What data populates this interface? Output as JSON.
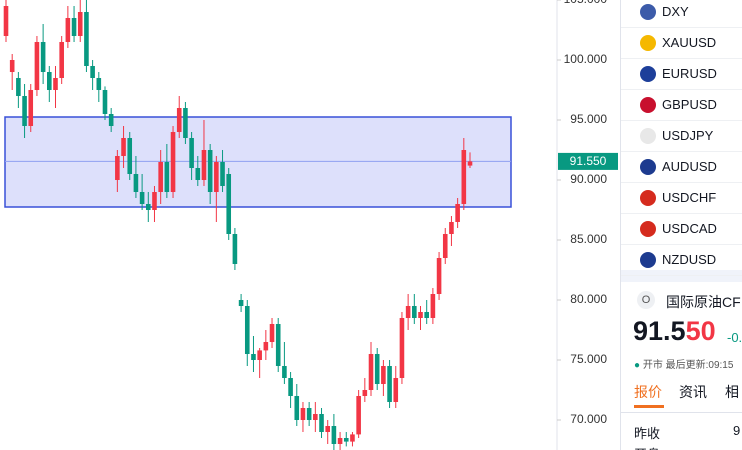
{
  "chart_data": {
    "type": "candlestick",
    "up_color": "#f23645",
    "down_color": "#089981",
    "ylim": [
      67.5,
      105
    ],
    "yticks": [
      {
        "value": 105,
        "label": "105.000"
      },
      {
        "value": 100,
        "label": "100.000"
      },
      {
        "value": 95,
        "label": "95.000"
      },
      {
        "value": 90,
        "label": "90.000"
      },
      {
        "value": 85,
        "label": "85.000"
      },
      {
        "value": 80,
        "label": "80.000"
      },
      {
        "value": 75,
        "label": "75.000"
      },
      {
        "value": 70,
        "label": "70.000"
      }
    ],
    "last_price": {
      "value": 91.55,
      "label": "91.550"
    },
    "zone": [
      87.75,
      95.25
    ],
    "open": [
      102.0,
      99.0,
      98.5,
      97.0,
      94.5,
      97.5,
      101.5,
      99.0,
      97.5,
      98.5,
      101.5,
      103.5,
      102.0,
      104.0,
      99.5,
      98.5,
      97.5,
      95.5,
      90.0,
      92.0,
      93.5,
      90.5,
      89.0,
      88.0,
      87.5,
      89.0,
      91.5,
      89.0,
      94.0,
      96.0,
      93.5,
      91.0,
      90.0,
      92.5,
      89.0,
      91.5,
      90.5,
      85.5,
      80.0,
      79.5,
      75.5,
      75.0,
      75.8,
      76.5,
      78.0,
      74.5,
      73.5,
      72.0,
      70.0,
      71.0,
      70.0,
      70.5,
      69.0,
      69.5,
      68.0,
      68.5,
      68.2,
      68.8,
      72.0,
      72.5,
      75.5,
      73.0,
      74.5,
      71.5,
      73.5,
      78.5,
      79.5,
      78.5,
      79.0,
      78.5,
      80.5,
      83.5,
      85.5,
      86.5,
      88.0,
      91.2
    ],
    "high": [
      105.5,
      100.5,
      99.0,
      98.0,
      98.0,
      102.0,
      103.0,
      99.5,
      99.5,
      102.0,
      104.5,
      104.5,
      105.5,
      105.0,
      100.0,
      99.0,
      97.8,
      96.0,
      92.5,
      94.5,
      94.0,
      92.0,
      90.5,
      89.0,
      89.5,
      92.5,
      93.0,
      94.5,
      97.0,
      96.5,
      94.0,
      92.0,
      95.0,
      93.0,
      92.0,
      92.5,
      91.0,
      86.0,
      80.5,
      80.0,
      77.0,
      76.0,
      77.5,
      78.5,
      78.5,
      76.5,
      74.0,
      73.0,
      71.5,
      71.5,
      71.5,
      71.0,
      70.0,
      70.5,
      69.0,
      69.0,
      69.0,
      72.5,
      73.5,
      76.5,
      76.0,
      75.0,
      75.0,
      74.5,
      79.0,
      80.5,
      80.5,
      79.5,
      80.0,
      81.0,
      84.0,
      86.0,
      87.0,
      88.5,
      93.5,
      92.3
    ],
    "low": [
      101.5,
      97.5,
      96.0,
      93.5,
      94.0,
      97.0,
      98.0,
      96.5,
      96.0,
      98.0,
      101.0,
      101.5,
      101.5,
      99.0,
      97.5,
      96.5,
      95.0,
      94.0,
      89.0,
      91.0,
      90.0,
      88.5,
      87.5,
      86.5,
      86.5,
      88.0,
      88.5,
      88.5,
      93.5,
      93.0,
      90.0,
      89.5,
      89.5,
      88.0,
      86.5,
      89.0,
      85.0,
      82.5,
      79.0,
      74.5,
      74.0,
      73.5,
      75.0,
      76.0,
      74.0,
      73.0,
      71.0,
      69.5,
      69.0,
      69.5,
      69.0,
      68.5,
      68.0,
      67.5,
      67.5,
      67.8,
      67.8,
      68.5,
      71.5,
      72.0,
      72.5,
      72.0,
      71.0,
      71.0,
      73.0,
      77.5,
      78.0,
      77.5,
      78.0,
      78.0,
      80.0,
      83.0,
      84.5,
      86.0,
      87.5,
      91.0
    ],
    "close": [
      104.5,
      100.0,
      97.0,
      94.5,
      97.5,
      101.5,
      99.0,
      97.5,
      98.5,
      101.5,
      103.5,
      102.0,
      104.0,
      99.5,
      98.5,
      97.5,
      95.5,
      94.5,
      92.0,
      93.5,
      90.5,
      89.0,
      88.0,
      87.5,
      89.0,
      91.5,
      89.0,
      94.0,
      96.0,
      93.5,
      91.0,
      90.0,
      92.5,
      89.0,
      91.5,
      89.5,
      85.5,
      83.0,
      79.5,
      75.5,
      75.0,
      75.8,
      76.5,
      78.0,
      74.5,
      73.5,
      72.0,
      70.0,
      71.0,
      70.0,
      70.5,
      69.0,
      69.5,
      68.0,
      68.5,
      68.2,
      68.8,
      72.0,
      72.5,
      75.5,
      73.0,
      74.5,
      71.5,
      73.5,
      78.5,
      79.5,
      78.5,
      79.0,
      78.5,
      80.5,
      83.5,
      85.5,
      86.5,
      88.0,
      92.5,
      91.55
    ]
  },
  "watchlist": [
    "DXY",
    "XAUUSD",
    "EURUSD",
    "GBPUSD",
    "USDJPY",
    "AUDUSD",
    "USDCHF",
    "USDCAD",
    "NZDUSD"
  ],
  "quote": {
    "icon": "O",
    "name": "国际原油CF",
    "price_main": "91.5",
    "price_tail": "50",
    "change": "-0.",
    "status": "开市 最后更新:09:15",
    "tabs": [
      "报价",
      "资讯",
      "相"
    ],
    "rows": [
      [
        "昨收",
        "9"
      ],
      [
        "开盘",
        ""
      ]
    ]
  }
}
